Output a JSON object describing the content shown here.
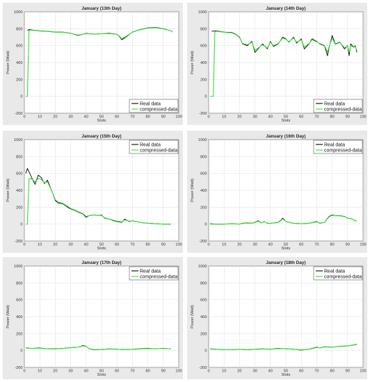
{
  "chart_data": [
    {
      "type": "line",
      "title": "January (13th Day)",
      "xlabel": "Slots",
      "ylabel": "Power (Watt)",
      "xlim": [
        0,
        100
      ],
      "ylim": [
        -200,
        1000
      ],
      "xticks": [
        0,
        10,
        20,
        30,
        40,
        50,
        60,
        70,
        80,
        90,
        100
      ],
      "yticks": [
        -200,
        0,
        200,
        400,
        600,
        800,
        1000
      ],
      "grid": true,
      "legend_position": "bottom-right",
      "series": [
        {
          "name": "Real data",
          "color": "#000000",
          "x": [
            2,
            3,
            5,
            10,
            15,
            20,
            25,
            30,
            35,
            40,
            45,
            50,
            55,
            60,
            62,
            63,
            65,
            70,
            75,
            80,
            85,
            90,
            95,
            96
          ],
          "y": [
            780,
            790,
            785,
            775,
            770,
            760,
            760,
            745,
            720,
            745,
            735,
            740,
            745,
            735,
            700,
            670,
            690,
            760,
            790,
            810,
            815,
            800,
            775,
            760
          ]
        },
        {
          "name": "compressed-data",
          "color": "#33dd33",
          "x": [
            1,
            2,
            3,
            5,
            10,
            15,
            20,
            25,
            30,
            35,
            40,
            45,
            50,
            55,
            60,
            62,
            63,
            65,
            70,
            75,
            80,
            85,
            90,
            95,
            96
          ],
          "y": [
            0,
            0,
            780,
            782,
            772,
            768,
            758,
            758,
            745,
            725,
            742,
            738,
            740,
            742,
            735,
            705,
            680,
            700,
            758,
            788,
            808,
            812,
            798,
            775,
            762
          ]
        }
      ]
    },
    {
      "type": "line",
      "title": "January (14th Day)",
      "xlabel": "Slots",
      "ylabel": "Power (Watt)",
      "xlim": [
        0,
        100
      ],
      "ylim": [
        -200,
        1000
      ],
      "xticks": [
        0,
        10,
        20,
        30,
        40,
        50,
        60,
        70,
        80,
        90,
        100
      ],
      "yticks": [
        -200,
        0,
        200,
        400,
        600,
        800,
        1000
      ],
      "grid": true,
      "legend_position": "bottom-right",
      "series": [
        {
          "name": "Real data",
          "color": "#000000",
          "x": [
            2,
            5,
            10,
            15,
            18,
            20,
            22,
            25,
            28,
            30,
            32,
            35,
            38,
            40,
            42,
            45,
            48,
            50,
            52,
            55,
            57,
            60,
            62,
            65,
            67,
            70,
            72,
            75,
            77,
            78,
            80,
            82,
            85,
            88,
            90,
            91,
            92,
            94,
            95,
            96
          ],
          "y": [
            770,
            775,
            760,
            755,
            730,
            700,
            620,
            600,
            650,
            520,
            560,
            620,
            560,
            650,
            590,
            620,
            700,
            680,
            640,
            700,
            630,
            680,
            560,
            620,
            680,
            650,
            620,
            600,
            480,
            580,
            720,
            620,
            640,
            560,
            600,
            480,
            620,
            580,
            600,
            520
          ]
        },
        {
          "name": "compressed-data",
          "color": "#33dd33",
          "x": [
            1,
            3,
            4,
            5,
            10,
            15,
            18,
            20,
            22,
            25,
            28,
            30,
            32,
            35,
            38,
            40,
            42,
            45,
            48,
            50,
            52,
            55,
            57,
            60,
            62,
            65,
            67,
            70,
            72,
            75,
            77,
            78,
            80,
            82,
            85,
            88,
            90,
            91,
            92,
            94,
            95,
            96
          ],
          "y": [
            0,
            0,
            760,
            770,
            758,
            750,
            728,
            695,
            625,
            610,
            640,
            545,
            570,
            610,
            570,
            640,
            600,
            625,
            690,
            675,
            645,
            690,
            640,
            670,
            580,
            625,
            670,
            645,
            625,
            605,
            520,
            590,
            690,
            615,
            635,
            575,
            595,
            520,
            600,
            580,
            590,
            540
          ]
        }
      ]
    },
    {
      "type": "line",
      "title": "January (15th Day)",
      "xlabel": "Slots",
      "ylabel": "Power (Watt)",
      "xlim": [
        0,
        100
      ],
      "ylim": [
        -200,
        1000
      ],
      "xticks": [
        0,
        10,
        20,
        30,
        40,
        50,
        60,
        70,
        80,
        90,
        100
      ],
      "yticks": [
        -200,
        0,
        200,
        400,
        600,
        800,
        1000
      ],
      "grid": true,
      "legend_position": "top-right",
      "series": [
        {
          "name": "Real data",
          "color": "#000000",
          "x": [
            1,
            2,
            3,
            5,
            7,
            9,
            11,
            13,
            15,
            18,
            20,
            22,
            25,
            28,
            30,
            33,
            35,
            38,
            40,
            42,
            45,
            48,
            50,
            52,
            55,
            58,
            60,
            63,
            65,
            68,
            70,
            75,
            80,
            85,
            90,
            95
          ],
          "y": [
            600,
            660,
            620,
            540,
            470,
            580,
            550,
            480,
            520,
            380,
            280,
            250,
            240,
            200,
            180,
            160,
            140,
            120,
            80,
            100,
            110,
            100,
            110,
            70,
            60,
            40,
            30,
            20,
            60,
            30,
            40,
            20,
            10,
            5,
            0,
            0
          ]
        },
        {
          "name": "compressed-data",
          "color": "#33dd33",
          "x": [
            1,
            2,
            3,
            5,
            7,
            9,
            11,
            13,
            15,
            18,
            20,
            22,
            25,
            28,
            30,
            33,
            35,
            38,
            40,
            42,
            45,
            48,
            50,
            52,
            55,
            58,
            60,
            63,
            65,
            68,
            70,
            75,
            80,
            85,
            90,
            95
          ],
          "y": [
            0,
            0,
            540,
            530,
            500,
            540,
            530,
            490,
            500,
            380,
            290,
            260,
            245,
            210,
            185,
            165,
            145,
            125,
            90,
            100,
            108,
            100,
            105,
            75,
            60,
            45,
            35,
            25,
            50,
            35,
            38,
            20,
            10,
            5,
            0,
            0
          ]
        }
      ]
    },
    {
      "type": "line",
      "title": "January (16th Day)",
      "xlabel": "Slots",
      "ylabel": "Power (Watt)",
      "xlim": [
        0,
        100
      ],
      "ylim": [
        -200,
        1000
      ],
      "xticks": [
        0,
        10,
        20,
        30,
        40,
        50,
        60,
        70,
        80,
        90,
        100
      ],
      "yticks": [
        -200,
        0,
        200,
        400,
        600,
        800,
        1000
      ],
      "grid": true,
      "legend_position": "top-right",
      "series": [
        {
          "name": "Real data",
          "color": "#000000",
          "x": [
            1,
            5,
            10,
            15,
            20,
            22,
            25,
            28,
            30,
            32,
            34,
            36,
            38,
            40,
            45,
            47,
            48,
            50,
            55,
            60,
            65,
            70,
            72,
            75,
            78,
            80,
            82,
            85,
            88,
            90,
            93,
            95,
            96
          ],
          "y": [
            5,
            0,
            0,
            5,
            0,
            10,
            15,
            10,
            20,
            40,
            15,
            30,
            10,
            10,
            20,
            50,
            70,
            30,
            10,
            5,
            10,
            30,
            10,
            20,
            90,
            110,
            100,
            100,
            90,
            70,
            60,
            40,
            40
          ]
        },
        {
          "name": "compressed-data",
          "color": "#33dd33",
          "x": [
            1,
            5,
            10,
            15,
            20,
            22,
            25,
            28,
            30,
            32,
            34,
            36,
            38,
            40,
            45,
            47,
            48,
            50,
            55,
            60,
            65,
            70,
            72,
            75,
            78,
            80,
            82,
            85,
            88,
            90,
            93,
            95,
            96
          ],
          "y": [
            0,
            0,
            0,
            5,
            0,
            8,
            12,
            10,
            18,
            35,
            15,
            28,
            12,
            10,
            18,
            45,
            62,
            30,
            10,
            5,
            10,
            26,
            12,
            20,
            85,
            105,
            98,
            98,
            88,
            70,
            58,
            42,
            40
          ]
        }
      ]
    },
    {
      "type": "line",
      "title": "January (17th Day)",
      "xlabel": "Slots",
      "ylabel": "Power (Watt)",
      "xlim": [
        0,
        100
      ],
      "ylim": [
        -200,
        1000
      ],
      "xticks": [
        0,
        10,
        20,
        30,
        40,
        50,
        60,
        70,
        80,
        90,
        100
      ],
      "yticks": [
        -200,
        0,
        200,
        400,
        600,
        800,
        1000
      ],
      "grid": true,
      "legend_position": "top-right",
      "series": [
        {
          "name": "Real data",
          "color": "#000000",
          "x": [
            1,
            5,
            10,
            15,
            20,
            25,
            30,
            35,
            38,
            40,
            42,
            45,
            50,
            55,
            60,
            65,
            70,
            75,
            80,
            85,
            90,
            95
          ],
          "y": [
            30,
            25,
            30,
            20,
            20,
            25,
            35,
            40,
            60,
            50,
            20,
            10,
            10,
            20,
            15,
            10,
            15,
            20,
            25,
            20,
            25,
            20
          ]
        },
        {
          "name": "compressed-data",
          "color": "#33dd33",
          "x": [
            1,
            5,
            10,
            15,
            20,
            25,
            30,
            35,
            38,
            40,
            42,
            45,
            50,
            55,
            60,
            65,
            70,
            75,
            80,
            85,
            90,
            95
          ],
          "y": [
            28,
            24,
            28,
            20,
            18,
            24,
            33,
            40,
            55,
            48,
            22,
            12,
            10,
            18,
            15,
            10,
            14,
            18,
            22,
            20,
            24,
            20
          ]
        }
      ]
    },
    {
      "type": "line",
      "title": "January (18th Day)",
      "xlabel": "Slots",
      "ylabel": "Power (Watt)",
      "xlim": [
        0,
        100
      ],
      "ylim": [
        -200,
        1000
      ],
      "xticks": [
        0,
        10,
        20,
        30,
        40,
        50,
        60,
        70,
        80,
        90,
        100
      ],
      "yticks": [
        -200,
        0,
        200,
        400,
        600,
        800,
        1000
      ],
      "grid": true,
      "legend_position": "top-right",
      "series": [
        {
          "name": "Real data",
          "color": "#000000",
          "x": [
            1,
            5,
            10,
            15,
            20,
            25,
            30,
            35,
            40,
            45,
            50,
            55,
            60,
            65,
            70,
            72,
            75,
            80,
            85,
            90,
            95,
            96
          ],
          "y": [
            20,
            15,
            10,
            10,
            15,
            10,
            15,
            20,
            15,
            25,
            20,
            15,
            5,
            15,
            40,
            30,
            45,
            40,
            50,
            55,
            70,
            75
          ]
        },
        {
          "name": "compressed-data",
          "color": "#33dd33",
          "x": [
            1,
            5,
            10,
            15,
            20,
            25,
            30,
            35,
            40,
            45,
            50,
            55,
            60,
            65,
            70,
            72,
            75,
            80,
            85,
            90,
            95,
            96
          ],
          "y": [
            18,
            14,
            10,
            10,
            14,
            10,
            14,
            18,
            15,
            22,
            20,
            15,
            8,
            14,
            36,
            30,
            42,
            40,
            48,
            54,
            68,
            72
          ]
        }
      ]
    }
  ]
}
